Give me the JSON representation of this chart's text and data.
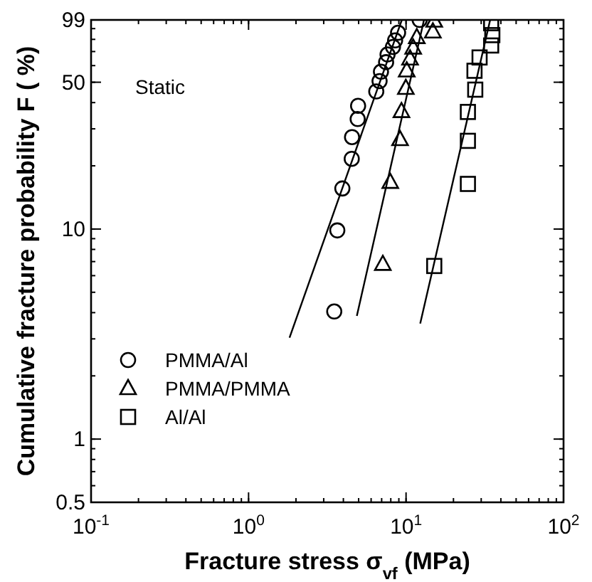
{
  "chart_data": {
    "type": "scatter",
    "xlabel": "Fracture stress σ$_{vf}$ (MPa)",
    "ylabel": "Cumulative fracture probability F ( %)",
    "annotations": [
      "Static"
    ],
    "log": "xy",
    "xlim": [
      0.1,
      100
    ],
    "ylim": [
      0.5,
      99
    ],
    "xticks": [
      {
        "value": 0.1,
        "label": "10$^{-1}$"
      },
      {
        "value": 1,
        "label": "10$^{0}$"
      },
      {
        "value": 10,
        "label": "10$^{1}$"
      },
      {
        "value": 100,
        "label": "10$^{2}$"
      }
    ],
    "yticks": [
      0.5,
      1,
      10,
      50,
      99
    ],
    "legend": "bottom left",
    "grid": false,
    "series": [
      {
        "name": "PMMA/Al",
        "color": "#000000",
        "marker": "circle",
        "x": [
          3.5,
          3.66,
          3.94,
          4.52,
          4.54,
          4.93,
          4.96,
          6.47,
          6.79,
          6.93,
          7.47,
          7.63,
          8.26,
          8.52,
          8.9,
          12.2
        ],
        "values": [
          4.05,
          9.85,
          15.6,
          21.6,
          27.4,
          33.4,
          38.6,
          45.2,
          50.6,
          56.1,
          62.3,
          67.8,
          73.6,
          79.1,
          86,
          99
        ]
      },
      {
        "name": "PMMA/PMMA",
        "color": "#000000",
        "marker": "triangle",
        "x": [
          7.12,
          7.94,
          9.16,
          9.35,
          9.97,
          10.1,
          10.6,
          11.1,
          11.7,
          14.8,
          15.1
        ],
        "values": [
          6.8,
          16.7,
          26.7,
          36.3,
          46.8,
          56.7,
          64.6,
          72.8,
          81.7,
          86.9,
          97.8
        ]
      },
      {
        "name": "Al/Al",
        "color": "#000000",
        "marker": "square",
        "x": [
          15.1,
          24.7,
          24.7,
          24.7,
          27.5,
          27.2,
          29.3,
          34.7,
          35.3,
          34.7
        ],
        "values": [
          6.67,
          16.4,
          26.3,
          36.1,
          46.1,
          56.7,
          65.6,
          74.8,
          83.8,
          95.5
        ]
      },
      {
        "type": "line",
        "color": "#000000",
        "marker": "none",
        "line_style": "solid",
        "x": [
          1.82,
          9.4
        ],
        "values": [
          3.04,
          99
        ]
      },
      {
        "type": "line",
        "color": "#000000",
        "marker": "none",
        "line_style": "solid",
        "x": [
          4.87,
          13.0
        ],
        "values": [
          3.86,
          99
        ]
      },
      {
        "type": "line",
        "color": "#000000",
        "marker": "none",
        "line_style": "solid",
        "x": [
          12.3,
          34.2
        ],
        "values": [
          3.55,
          99
        ]
      }
    ]
  }
}
